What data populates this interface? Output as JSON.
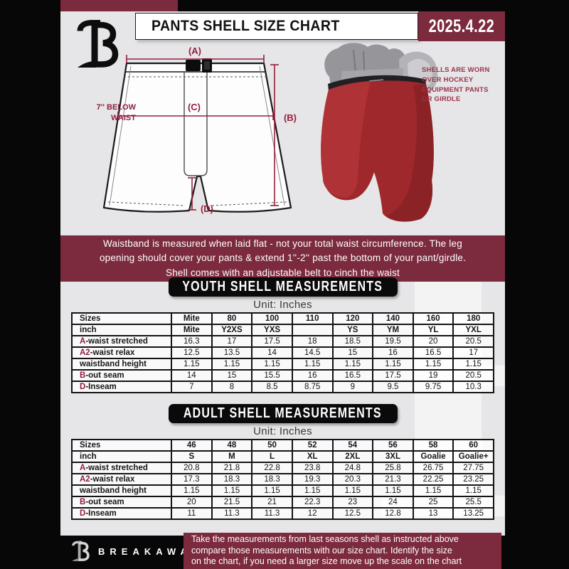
{
  "header": {
    "title": "PANTS SHELL SIZE CHART",
    "date": "2025.4.22"
  },
  "diagram": {
    "label_a": "(A)",
    "label_b": "(B)",
    "label_c": "(C)",
    "label_d": "(D)",
    "below_waist_lines": [
      "7'' BELOW",
      "WAIST"
    ],
    "shells_note_lines": [
      "SHELLS ARE WORN",
      "OVER HOCKEY",
      "EQUIPMENT PANTS",
      "OR GIRDLE"
    ]
  },
  "info_banner": {
    "lines": [
      "Waistband is measured when laid flat - not your total waist circumference. The leg",
      "opening should cover your pants & extend 1''-2'' past the bottom of your pant/girdle.",
      "Shell comes with an adjustable belt to cinch the waist"
    ]
  },
  "youth": {
    "title": "YOUTH SHELL MEASUREMENTS",
    "unit": "Unit: Inches",
    "table_rows": [
      {
        "label": "Sizes",
        "prefix": "",
        "header": true,
        "cells": [
          "Mite",
          "80",
          "100",
          "110",
          "120",
          "140",
          "160",
          "180"
        ]
      },
      {
        "label": "inch",
        "prefix": "",
        "header": true,
        "cells": [
          "Mite",
          "Y2XS",
          "YXS",
          "",
          "YS",
          "YM",
          "YL",
          "YXL"
        ]
      },
      {
        "label": "-waist stretched",
        "prefix": "A",
        "header": false,
        "cells": [
          "16.3",
          "17",
          "17.5",
          "18",
          "18.5",
          "19.5",
          "20",
          "20.5"
        ]
      },
      {
        "label": "-waist relax",
        "prefix": "A2",
        "header": false,
        "cells": [
          "12.5",
          "13.5",
          "14",
          "14.5",
          "15",
          "16",
          "16.5",
          "17"
        ]
      },
      {
        "label": "waistband height",
        "prefix": "",
        "header": false,
        "cells": [
          "1.15",
          "1.15",
          "1.15",
          "1.15",
          "1.15",
          "1.15",
          "1.15",
          "1.15"
        ]
      },
      {
        "label": "-out seam",
        "prefix": "B",
        "header": false,
        "cells": [
          "14",
          "15",
          "15.5",
          "16",
          "16.5",
          "17.5",
          "19",
          "20.5"
        ]
      },
      {
        "label": "-Inseam",
        "prefix": "D",
        "header": false,
        "cells": [
          "7",
          "8",
          "8.5",
          "8.75",
          "9",
          "9.5",
          "9.75",
          "10.3"
        ]
      }
    ]
  },
  "adult": {
    "title": "ADULT SHELL MEASUREMENTS",
    "unit": "Unit: Inches",
    "table_rows": [
      {
        "label": "Sizes",
        "prefix": "",
        "header": true,
        "cells": [
          "46",
          "48",
          "50",
          "52",
          "54",
          "56",
          "58",
          "60"
        ]
      },
      {
        "label": "inch",
        "prefix": "",
        "header": true,
        "cells": [
          "S",
          "M",
          "L",
          "XL",
          "2XL",
          "3XL",
          "Goalie",
          "Goalie+"
        ]
      },
      {
        "label": "-waist stretched",
        "prefix": "A",
        "header": false,
        "cells": [
          "20.8",
          "21.8",
          "22.8",
          "23.8",
          "24.8",
          "25.8",
          "26.75",
          "27.75"
        ]
      },
      {
        "label": "-waist relax",
        "prefix": "A2",
        "header": false,
        "cells": [
          "17.3",
          "18.3",
          "18.3",
          "19.3",
          "20.3",
          "21.3",
          "22.25",
          "23.25"
        ]
      },
      {
        "label": "waistband height",
        "prefix": "",
        "header": false,
        "cells": [
          "1.15",
          "1.15",
          "1.15",
          "1.15",
          "1.15",
          "1.15",
          "1.15",
          "1.15"
        ]
      },
      {
        "label": "-out seam",
        "prefix": "B",
        "header": false,
        "cells": [
          "20",
          "21.5",
          "21",
          "22.3",
          "23",
          "24",
          "25",
          "25.5"
        ]
      },
      {
        "label": "-Inseam",
        "prefix": "D",
        "header": false,
        "cells": [
          "11",
          "11.3",
          "11.3",
          "12",
          "12.5",
          "12.8",
          "13",
          "13.25"
        ]
      }
    ]
  },
  "footer": {
    "brand": "BREAKAWAY",
    "note_lines": [
      "Take the measurements from last seasons shell as instructed above",
      "compare those measurements  with our size chart. Identify the size",
      "on the chart, if you need a larger size move up the scale on the chart"
    ]
  },
  "watermark_letter": "B",
  "colors": {
    "maroon": "#7C2B3E",
    "annotation_crimson": "#94203E",
    "background_gray": "#E6E5E7",
    "black": "#0A0A0A"
  }
}
